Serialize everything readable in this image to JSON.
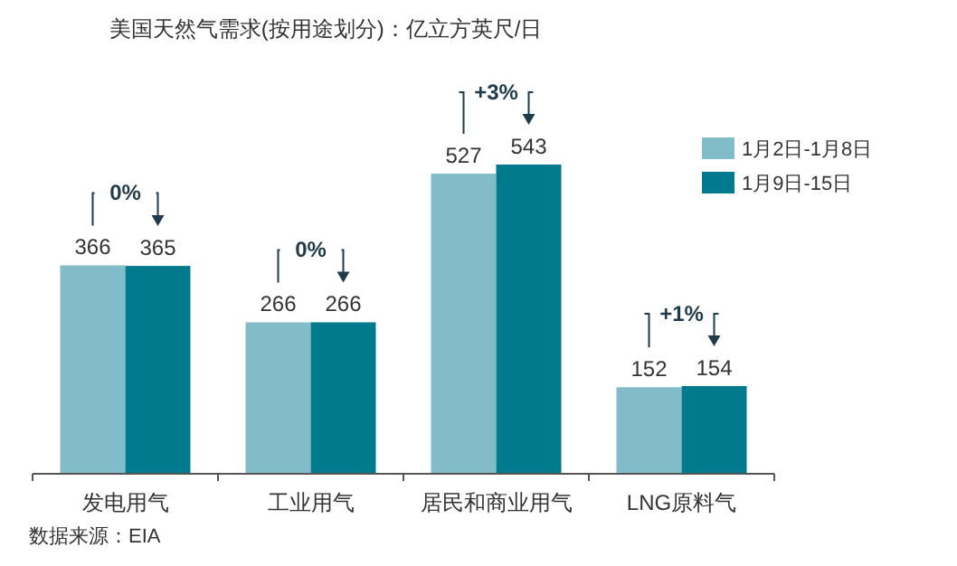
{
  "chart_data": {
    "type": "bar",
    "title": "美国天然气需求(按用途划分)：亿立方英尺/日",
    "categories": [
      "发电用气",
      "工业用气",
      "居民和商业用气",
      "LNG原料气"
    ],
    "series": [
      {
        "name": "1月2日-1月8日",
        "color": "#82bcc8",
        "values": [
          366,
          266,
          527,
          152
        ]
      },
      {
        "name": "1月9日-15日",
        "color": "#007a8c",
        "values": [
          365,
          266,
          543,
          154
        ]
      }
    ],
    "data_labels": true,
    "legend": "right",
    "annotations": [
      {
        "text": "0%",
        "x": "发电用气",
        "y": 365
      },
      {
        "text": "0%",
        "x": "工业用气",
        "y": 266
      },
      {
        "text": "+3%",
        "x": "居民和商业用气",
        "y": 543
      },
      {
        "text": "+1%",
        "x": "LNG原料气",
        "y": 154
      },
      "数据来源：EIA"
    ]
  }
}
